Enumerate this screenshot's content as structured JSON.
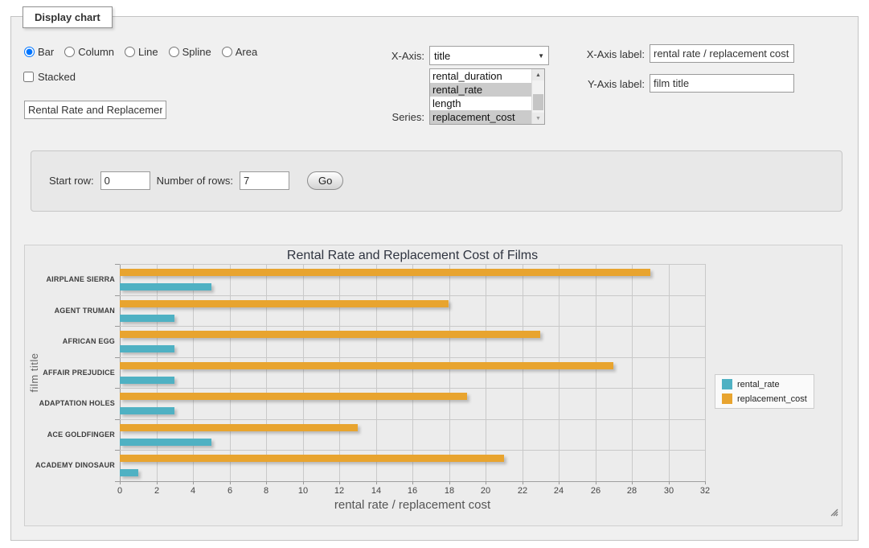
{
  "panel": {
    "legend": "Display chart"
  },
  "chart_type": {
    "options": [
      "Bar",
      "Column",
      "Line",
      "Spline",
      "Area"
    ],
    "selected": "Bar"
  },
  "stacked": {
    "label": "Stacked",
    "checked": false
  },
  "title_input": {
    "value": "Rental Rate and Replacement Cost of Films"
  },
  "x_axis": {
    "label": "X-Axis:",
    "selected": "title"
  },
  "series_select": {
    "label": "Series:",
    "options": [
      {
        "label": "rental_duration",
        "selected": false
      },
      {
        "label": "rental_rate",
        "selected": true
      },
      {
        "label": "length",
        "selected": false
      },
      {
        "label": "replacement_cost",
        "selected": true
      }
    ]
  },
  "x_axis_label": {
    "label": "X-Axis label:",
    "value": "rental rate / replacement cost"
  },
  "y_axis_label": {
    "label": "Y-Axis label:",
    "value": "film title"
  },
  "rows_panel": {
    "start_row_label": "Start row:",
    "start_row": "0",
    "num_rows_label": "Number of rows:",
    "num_rows": "7",
    "go_label": "Go"
  },
  "icons": {
    "select_caret": "▼",
    "scroll_up": "▲",
    "scroll_down": "▼",
    "resize_grip": "resize-grip"
  },
  "chart_data": {
    "type": "bar",
    "orientation": "horizontal",
    "title": "Rental Rate and Replacement Cost of Films",
    "categories": [
      "AIRPLANE SIERRA",
      "AGENT TRUMAN",
      "AFRICAN EGG",
      "AFFAIR PREJUDICE",
      "ADAPTATION HOLES",
      "ACE GOLDFINGER",
      "ACADEMY DINOSAUR"
    ],
    "series": [
      {
        "name": "rental_rate",
        "color": "#4fb1c3",
        "values": [
          4.99,
          2.99,
          2.99,
          2.99,
          2.99,
          4.99,
          0.99
        ]
      },
      {
        "name": "replacement_cost",
        "color": "#e8a42f",
        "values": [
          28.99,
          17.99,
          22.99,
          26.99,
          18.99,
          12.99,
          20.99
        ]
      }
    ],
    "xlabel": "rental rate / replacement cost",
    "ylabel": "film title",
    "xlim": [
      0,
      32
    ],
    "xticks": [
      0,
      2,
      4,
      6,
      8,
      10,
      12,
      14,
      16,
      18,
      20,
      22,
      24,
      26,
      28,
      30,
      32
    ],
    "grid": true,
    "legend_position": "right",
    "plot_bg": "#ececec",
    "grid_color": "#c9c9c9"
  }
}
